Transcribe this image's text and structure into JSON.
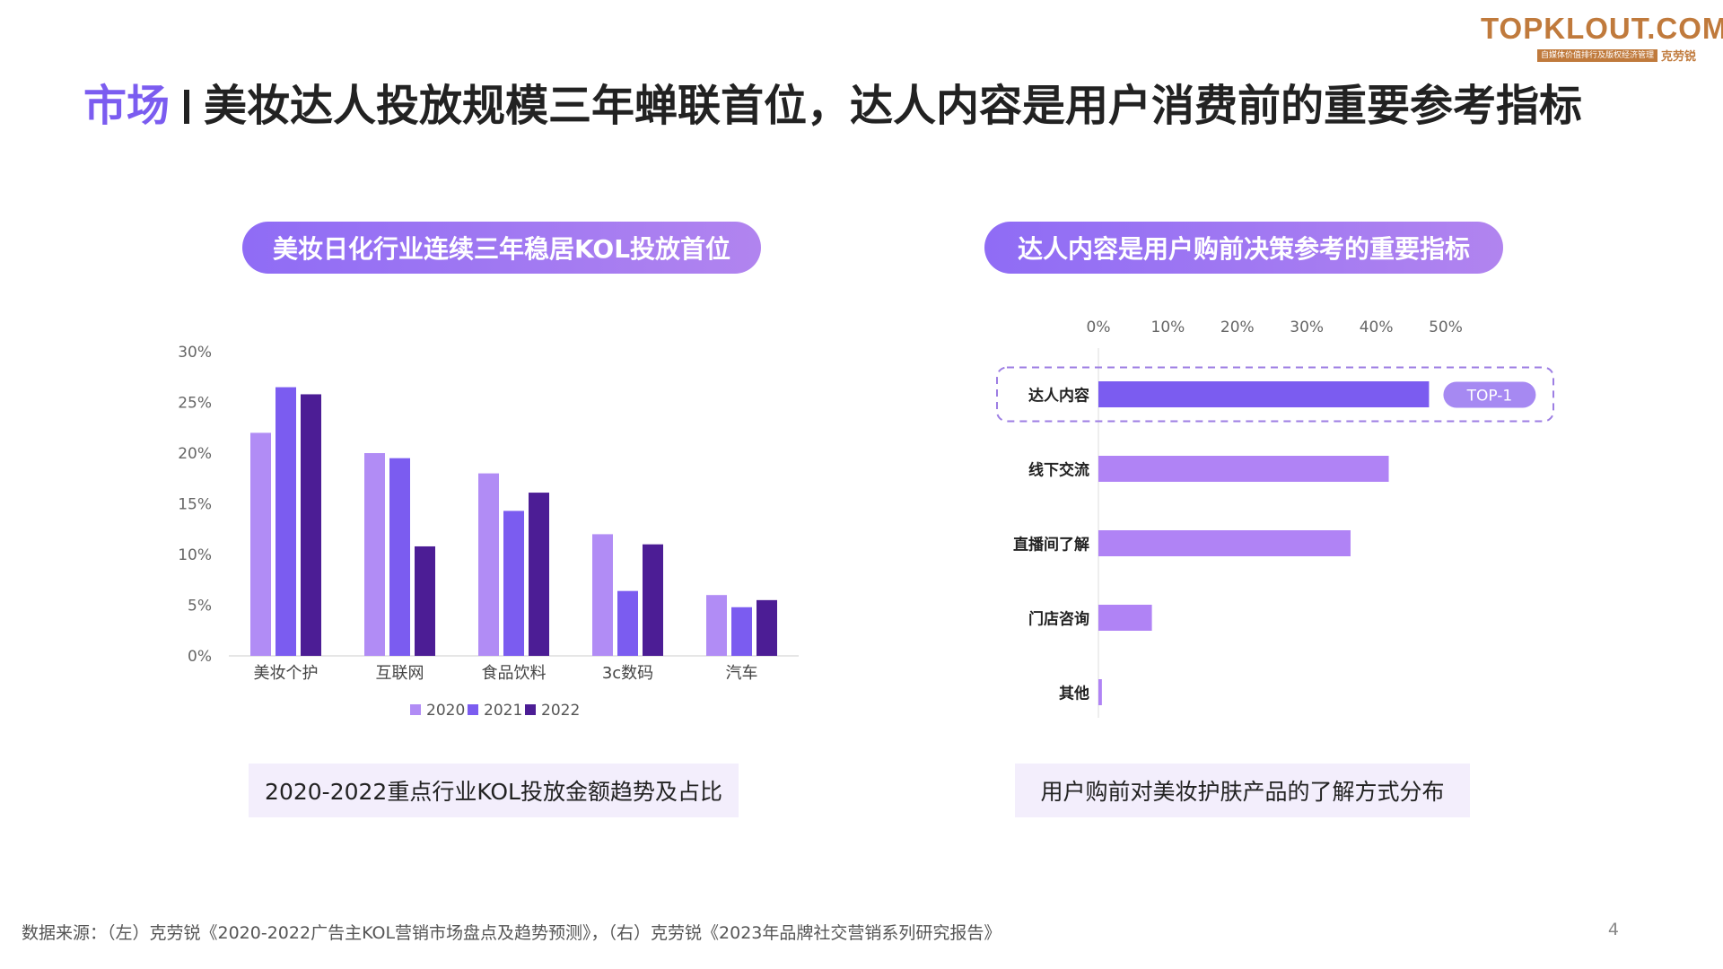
{
  "logo": {
    "main": "TOPKLOUT.COM",
    "sub": "自媒体价值排行及版权经济管理",
    "name": "克劳锐"
  },
  "header": {
    "tag": "市场",
    "title": "美妆达人投放规模三年蝉联首位，达人内容是用户消费前的重要参考指标"
  },
  "left_panel": {
    "pill": "美妆日化行业连续三年稳居KOL投放首位",
    "caption": "2020-2022重点行业KOL投放金额趋势及占比"
  },
  "right_panel": {
    "pill": "达人内容是用户购前决策参考的重要指标",
    "caption": "用户购前对美妆护肤产品的了解方式分布",
    "top_badge": "TOP-1"
  },
  "chart_data": [
    {
      "type": "bar",
      "categories": [
        "美妆个护",
        "互联网",
        "食品饮料",
        "3c数码",
        "汽车"
      ],
      "series": [
        {
          "name": "2020",
          "values": [
            22,
            20,
            18,
            12,
            6
          ],
          "color": "#b18cf5"
        },
        {
          "name": "2021",
          "values": [
            26.5,
            19.5,
            14.3,
            6.4,
            4.8
          ],
          "color": "#7b5cf0"
        },
        {
          "name": "2022",
          "values": [
            25.8,
            10.8,
            16.1,
            11,
            5.5
          ],
          "color": "#4c1d95"
        }
      ],
      "yticks": [
        "0%",
        "5%",
        "10%",
        "15%",
        "20%",
        "25%",
        "30%"
      ],
      "ylim": [
        0,
        30
      ],
      "legend_position": "bottom"
    },
    {
      "type": "bar",
      "orientation": "horizontal",
      "categories": [
        "达人内容",
        "线下交流",
        "直播间了解",
        "门店咨询",
        "其他"
      ],
      "values": [
        47.6,
        41.8,
        36.3,
        7.7,
        0.5
      ],
      "colors": [
        "#7b5cf0",
        "#b083f5",
        "#b083f5",
        "#b083f5",
        "#b083f5"
      ],
      "xticks": [
        "0%",
        "10%",
        "20%",
        "30%",
        "40%",
        "50%"
      ],
      "xlim": [
        0,
        50
      ],
      "highlight_index": 0
    }
  ],
  "footer": {
    "source": "数据来源：（左）克劳锐《2020-2022广告主KOL营销市场盘点及趋势预测》，（右）克劳锐《2023年品牌社交营销系列研究报告》",
    "page_number": "4"
  }
}
